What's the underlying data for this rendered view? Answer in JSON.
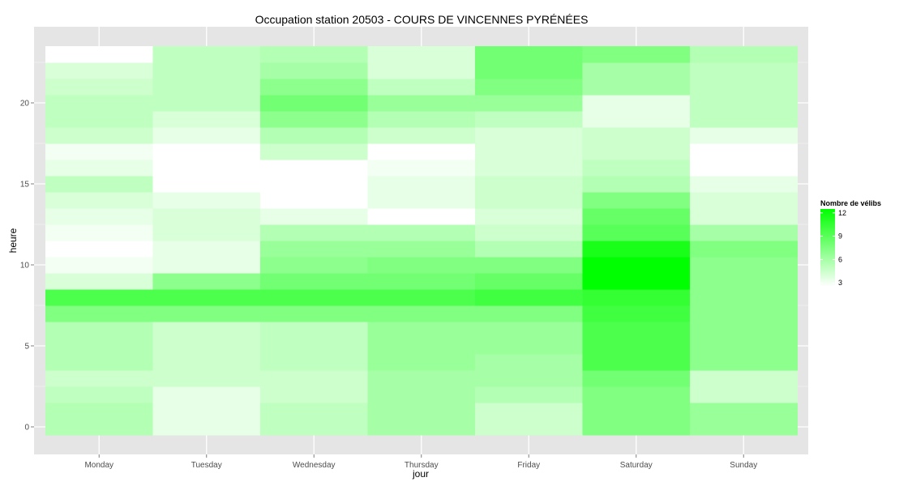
{
  "chart_data": {
    "type": "heatmap",
    "title": "Occupation station 20503 - COURS DE VINCENNES PYRÉNÉES",
    "xlabel": "jour",
    "ylabel": "heure",
    "categories": [
      "Monday",
      "Tuesday",
      "Wednesday",
      "Thursday",
      "Friday",
      "Saturday",
      "Sunday"
    ],
    "y_range": [
      0,
      23
    ],
    "y_ticks": [
      0,
      5,
      10,
      15,
      20
    ],
    "grid": true,
    "legend": {
      "title": "Nombre de vélibs",
      "position": "right",
      "ticks": [
        3,
        6,
        9,
        12
      ],
      "range": [
        2.5,
        12.5
      ],
      "color_low": "#ffffff",
      "color_high": "#00ff00"
    },
    "values": [
      [
        5.5,
        3.5,
        5.0,
        6.0,
        4.5,
        7.5,
        6.5
      ],
      [
        5.5,
        3.5,
        5.0,
        6.0,
        4.5,
        7.5,
        6.5
      ],
      [
        5.0,
        3.5,
        4.5,
        6.0,
        5.5,
        7.5,
        4.5
      ],
      [
        4.5,
        4.5,
        4.5,
        6.0,
        6.0,
        8.0,
        4.5
      ],
      [
        5.5,
        4.5,
        5.0,
        6.5,
        6.0,
        9.5,
        7.0
      ],
      [
        5.5,
        4.5,
        5.0,
        6.5,
        6.5,
        9.5,
        7.0
      ],
      [
        5.5,
        4.5,
        5.0,
        6.5,
        6.5,
        9.5,
        7.0
      ],
      [
        7.5,
        7.5,
        7.5,
        7.5,
        7.5,
        10.0,
        7.0
      ],
      [
        9.5,
        9.5,
        9.5,
        9.5,
        10.0,
        10.5,
        7.0
      ],
      [
        4.0,
        7.0,
        8.0,
        8.0,
        8.5,
        12.5,
        7.0
      ],
      [
        3.0,
        3.5,
        7.0,
        7.5,
        7.5,
        12.5,
        7.0
      ],
      [
        2.5,
        3.5,
        6.5,
        6.5,
        5.5,
        11.5,
        7.5
      ],
      [
        3.0,
        4.0,
        5.5,
        5.5,
        4.5,
        9.0,
        6.0
      ],
      [
        3.5,
        4.0,
        3.5,
        2.5,
        4.0,
        8.5,
        4.0
      ],
      [
        4.0,
        3.5,
        2.5,
        3.5,
        4.5,
        7.5,
        4.0
      ],
      [
        5.0,
        2.5,
        2.5,
        3.5,
        4.5,
        5.5,
        3.5
      ],
      [
        3.5,
        2.5,
        2.5,
        3.0,
        4.0,
        5.0,
        2.5
      ],
      [
        3.0,
        2.5,
        4.5,
        2.5,
        4.0,
        4.5,
        2.5
      ],
      [
        4.5,
        3.5,
        5.5,
        4.5,
        4.0,
        4.5,
        3.5
      ],
      [
        5.0,
        4.0,
        7.0,
        5.5,
        5.0,
        3.5,
        5.0
      ],
      [
        5.0,
        5.0,
        8.0,
        6.5,
        6.5,
        3.5,
        5.0
      ],
      [
        4.5,
        5.0,
        7.0,
        5.0,
        7.5,
        6.0,
        5.0
      ],
      [
        4.0,
        5.0,
        6.0,
        4.0,
        8.0,
        6.0,
        5.0
      ],
      [
        2.5,
        5.0,
        5.5,
        4.0,
        8.0,
        7.5,
        5.5
      ]
    ]
  }
}
